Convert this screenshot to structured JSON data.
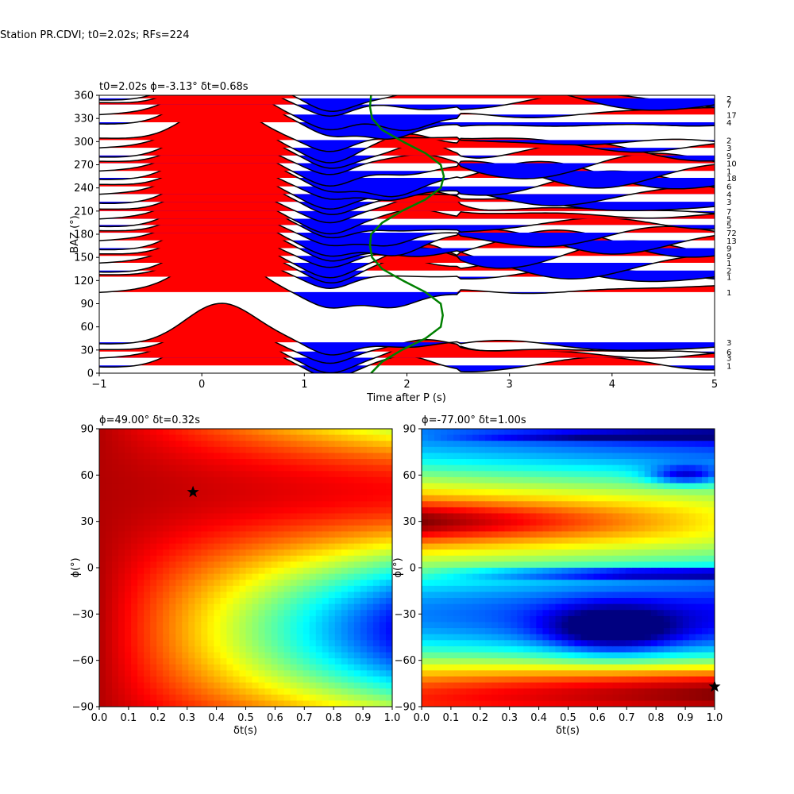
{
  "figure": {
    "suptitle": "Station PR.CDVI; t0=2.02s; RFs=224"
  },
  "chart_data": [
    {
      "type": "line",
      "title": "t0=2.02s ϕ=-3.13° δt=0.68s",
      "xlabel": "Time after P (s)",
      "ylabel": "BAZ (°)",
      "xlim": [
        -1,
        5
      ],
      "ylim": [
        0,
        360
      ],
      "xticks": [
        -1,
        0,
        1,
        2,
        3,
        4,
        5
      ],
      "yticks": [
        0,
        30,
        60,
        90,
        120,
        150,
        180,
        210,
        240,
        270,
        300,
        330,
        360
      ],
      "fill_positive_color": "#ff0000",
      "fill_negative_color": "#0000ff",
      "trace_color": "#000000",
      "model_curve_color": "#008000",
      "model_curve": {
        "baz": [
          0,
          15,
          30,
          45,
          60,
          75,
          90,
          105,
          120,
          135,
          150,
          165,
          180,
          195,
          210,
          225,
          240,
          255,
          270,
          285,
          300,
          315,
          330,
          345,
          360
        ],
        "t": [
          1.65,
          1.76,
          1.95,
          2.18,
          2.33,
          2.35,
          2.33,
          2.18,
          1.96,
          1.76,
          1.66,
          1.64,
          1.65,
          1.76,
          1.95,
          2.18,
          2.33,
          2.36,
          2.33,
          2.18,
          1.96,
          1.76,
          1.66,
          1.64,
          1.65
        ]
      },
      "traces": [
        {
          "baz": 10,
          "count": "1"
        },
        {
          "baz": 20,
          "count": "3"
        },
        {
          "baz": 28,
          "count": "6"
        },
        {
          "baz": 40,
          "count": "3"
        },
        {
          "baz": 105,
          "count": "1"
        },
        {
          "baz": 125,
          "count": "1"
        },
        {
          "baz": 133,
          "count": "2"
        },
        {
          "baz": 143,
          "count": "1"
        },
        {
          "baz": 152,
          "count": "9"
        },
        {
          "baz": 162,
          "count": "9"
        },
        {
          "baz": 172,
          "count": "13"
        },
        {
          "baz": 182,
          "count": "72"
        },
        {
          "baz": 192,
          "count": "5"
        },
        {
          "baz": 200,
          "count": "5"
        },
        {
          "baz": 210,
          "count": "7"
        },
        {
          "baz": 222,
          "count": "3"
        },
        {
          "baz": 232,
          "count": "4"
        },
        {
          "baz": 242,
          "count": "6"
        },
        {
          "baz": 253,
          "count": "18"
        },
        {
          "baz": 262,
          "count": "1"
        },
        {
          "baz": 272,
          "count": "10"
        },
        {
          "baz": 282,
          "count": "9"
        },
        {
          "baz": 292,
          "count": "3"
        },
        {
          "baz": 302,
          "count": "2"
        },
        {
          "baz": 325,
          "count": "4"
        },
        {
          "baz": 335,
          "count": "17"
        },
        {
          "baz": 348,
          "count": "7"
        },
        {
          "baz": 356,
          "count": "2"
        }
      ]
    },
    {
      "type": "heatmap",
      "title": "ϕ=49.00° δt=0.32s",
      "xlabel": "δt(s)",
      "ylabel": "ϕ(°)",
      "xlim": [
        0.0,
        1.0
      ],
      "ylim": [
        -90,
        90
      ],
      "xticks": [
        0.0,
        0.1,
        0.2,
        0.3,
        0.4,
        0.5,
        0.6,
        0.7,
        0.8,
        0.9,
        1.0
      ],
      "yticks": [
        -90,
        -60,
        -30,
        0,
        30,
        60,
        90
      ],
      "colormap": "jet",
      "best_fit": {
        "dt": 0.32,
        "phi": 49.0
      }
    },
    {
      "type": "heatmap",
      "title": "ϕ=-77.00° δt=1.00s",
      "xlabel": "δt(s)",
      "ylabel": "ϕ(°)",
      "xlim": [
        0.0,
        1.0
      ],
      "ylim": [
        -90,
        90
      ],
      "xticks": [
        0.0,
        0.1,
        0.2,
        0.3,
        0.4,
        0.5,
        0.6,
        0.7,
        0.8,
        0.9,
        1.0
      ],
      "yticks": [
        -90,
        -60,
        -30,
        0,
        30,
        60,
        90
      ],
      "colormap": "jet",
      "best_fit": {
        "dt": 1.0,
        "phi": -77.0
      }
    }
  ]
}
